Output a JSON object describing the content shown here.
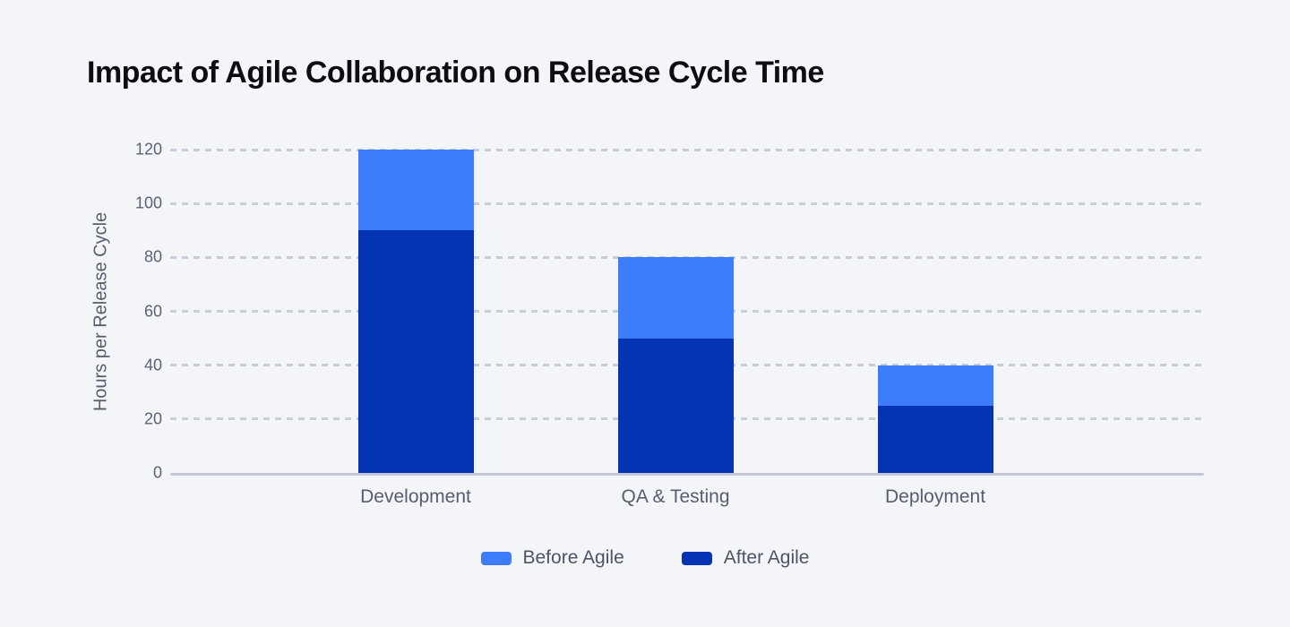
{
  "colors": {
    "background": "#f4f5f9",
    "title_text": "#0d0e12",
    "axis_text": "#5b6273",
    "category_text": "#565d6c",
    "legend_text": "#4d5464",
    "gridline": "#c7ccd9",
    "axis_line": "#c3c8d3",
    "before_agile": "#3d7dfb",
    "after_agile": "#0434b4"
  },
  "chart_data": {
    "type": "bar",
    "mode": "overlay",
    "title": "Impact of Agile Collaboration on Release Cycle Time",
    "xlabel": "",
    "ylabel": "Hours per Release Cycle",
    "categories": [
      "Development",
      "QA & Testing",
      "Deployment"
    ],
    "series": [
      {
        "name": "Before Agile",
        "color": "#3d7dfb",
        "values": [
          120,
          80,
          40
        ]
      },
      {
        "name": "After Agile",
        "color": "#0434b4",
        "values": [
          90,
          50,
          25
        ]
      }
    ],
    "ylim": [
      0,
      120
    ],
    "yticks": [
      0,
      20,
      40,
      60,
      80,
      100,
      120
    ],
    "grid": "horizontal-dashed",
    "legend_position": "bottom-center"
  }
}
